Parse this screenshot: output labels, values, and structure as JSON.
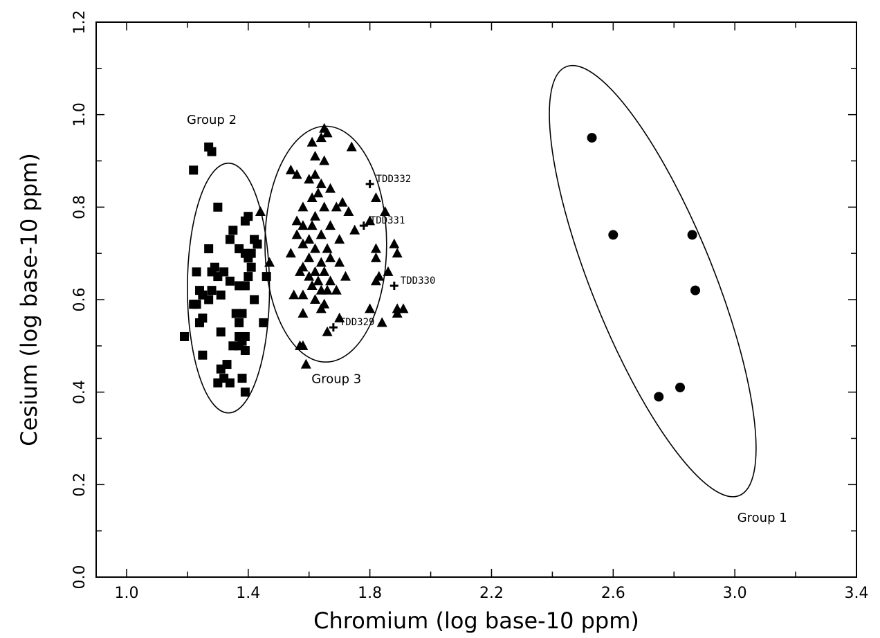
{
  "chart_data": {
    "type": "scatter",
    "title": "",
    "xlabel": "Chromium (log base-10 ppm)",
    "ylabel": "Cesium (log base-10 ppm)",
    "xlim": [
      0.9,
      3.4
    ],
    "ylim": [
      0.0,
      1.2
    ],
    "x_ticks": [
      "1.0",
      "1.4",
      "1.8",
      "2.2",
      "2.6",
      "3.0",
      "3.4"
    ],
    "y_ticks": [
      "0.0",
      "0.2",
      "0.4",
      "0.6",
      "0.8",
      "1.0",
      "1.2"
    ],
    "grid": false,
    "series": [
      {
        "marker": "square",
        "points": [
          [
            1.27,
            0.93
          ],
          [
            1.28,
            0.92
          ],
          [
            1.22,
            0.88
          ],
          [
            1.3,
            0.8
          ],
          [
            1.4,
            0.78
          ],
          [
            1.39,
            0.77
          ],
          [
            1.35,
            0.75
          ],
          [
            1.34,
            0.73
          ],
          [
            1.37,
            0.71
          ],
          [
            1.39,
            0.7
          ],
          [
            1.41,
            0.7
          ],
          [
            1.4,
            0.69
          ],
          [
            1.42,
            0.73
          ],
          [
            1.43,
            0.72
          ],
          [
            1.27,
            0.71
          ],
          [
            1.41,
            0.67
          ],
          [
            1.29,
            0.67
          ],
          [
            1.28,
            0.66
          ],
          [
            1.23,
            0.66
          ],
          [
            1.32,
            0.66
          ],
          [
            1.3,
            0.65
          ],
          [
            1.4,
            0.65
          ],
          [
            1.46,
            0.65
          ],
          [
            1.34,
            0.64
          ],
          [
            1.39,
            0.63
          ],
          [
            1.37,
            0.63
          ],
          [
            1.24,
            0.62
          ],
          [
            1.28,
            0.62
          ],
          [
            1.25,
            0.61
          ],
          [
            1.27,
            0.6
          ],
          [
            1.31,
            0.61
          ],
          [
            1.42,
            0.6
          ],
          [
            1.22,
            0.59
          ],
          [
            1.23,
            0.59
          ],
          [
            1.36,
            0.57
          ],
          [
            1.38,
            0.57
          ],
          [
            1.25,
            0.56
          ],
          [
            1.37,
            0.55
          ],
          [
            1.24,
            0.55
          ],
          [
            1.45,
            0.55
          ],
          [
            1.31,
            0.53
          ],
          [
            1.37,
            0.52
          ],
          [
            1.39,
            0.52
          ],
          [
            1.19,
            0.52
          ],
          [
            1.38,
            0.51
          ],
          [
            1.35,
            0.5
          ],
          [
            1.37,
            0.5
          ],
          [
            1.39,
            0.49
          ],
          [
            1.25,
            0.48
          ],
          [
            1.33,
            0.46
          ],
          [
            1.31,
            0.45
          ],
          [
            1.32,
            0.43
          ],
          [
            1.34,
            0.42
          ],
          [
            1.3,
            0.42
          ],
          [
            1.38,
            0.43
          ],
          [
            1.39,
            0.4
          ]
        ]
      },
      {
        "marker": "triangle",
        "points": [
          [
            1.65,
            0.97
          ],
          [
            1.66,
            0.96
          ],
          [
            1.64,
            0.95
          ],
          [
            1.61,
            0.94
          ],
          [
            1.74,
            0.93
          ],
          [
            1.65,
            0.9
          ],
          [
            1.62,
            0.91
          ],
          [
            1.54,
            0.88
          ],
          [
            1.56,
            0.87
          ],
          [
            1.62,
            0.87
          ],
          [
            1.64,
            0.85
          ],
          [
            1.6,
            0.86
          ],
          [
            1.67,
            0.84
          ],
          [
            1.63,
            0.83
          ],
          [
            1.71,
            0.81
          ],
          [
            1.82,
            0.82
          ],
          [
            1.61,
            0.82
          ],
          [
            1.58,
            0.8
          ],
          [
            1.65,
            0.8
          ],
          [
            1.69,
            0.8
          ],
          [
            1.44,
            0.79
          ],
          [
            1.73,
            0.79
          ],
          [
            1.85,
            0.79
          ],
          [
            1.62,
            0.78
          ],
          [
            1.56,
            0.77
          ],
          [
            1.8,
            0.77
          ],
          [
            1.58,
            0.76
          ],
          [
            1.61,
            0.76
          ],
          [
            1.67,
            0.76
          ],
          [
            1.75,
            0.75
          ],
          [
            1.56,
            0.74
          ],
          [
            1.64,
            0.74
          ],
          [
            1.6,
            0.73
          ],
          [
            1.7,
            0.73
          ],
          [
            1.58,
            0.72
          ],
          [
            1.88,
            0.72
          ],
          [
            1.66,
            0.71
          ],
          [
            1.62,
            0.71
          ],
          [
            1.82,
            0.71
          ],
          [
            1.89,
            0.7
          ],
          [
            1.54,
            0.7
          ],
          [
            1.6,
            0.69
          ],
          [
            1.67,
            0.69
          ],
          [
            1.82,
            0.69
          ],
          [
            1.64,
            0.68
          ],
          [
            1.47,
            0.68
          ],
          [
            1.7,
            0.68
          ],
          [
            1.58,
            0.67
          ],
          [
            1.62,
            0.66
          ],
          [
            1.65,
            0.66
          ],
          [
            1.57,
            0.66
          ],
          [
            1.86,
            0.66
          ],
          [
            1.6,
            0.65
          ],
          [
            1.72,
            0.65
          ],
          [
            1.83,
            0.65
          ],
          [
            1.63,
            0.64
          ],
          [
            1.67,
            0.64
          ],
          [
            1.82,
            0.64
          ],
          [
            1.61,
            0.63
          ],
          [
            1.64,
            0.62
          ],
          [
            1.69,
            0.62
          ],
          [
            1.66,
            0.62
          ],
          [
            1.58,
            0.61
          ],
          [
            1.55,
            0.61
          ],
          [
            1.62,
            0.6
          ],
          [
            1.65,
            0.59
          ],
          [
            1.64,
            0.58
          ],
          [
            1.8,
            0.58
          ],
          [
            1.89,
            0.58
          ],
          [
            1.91,
            0.58
          ],
          [
            1.58,
            0.57
          ],
          [
            1.89,
            0.57
          ],
          [
            1.7,
            0.56
          ],
          [
            1.84,
            0.55
          ],
          [
            1.66,
            0.53
          ],
          [
            1.58,
            0.5
          ],
          [
            1.57,
            0.5
          ],
          [
            1.59,
            0.46
          ]
        ]
      },
      {
        "marker": "circle",
        "points": [
          [
            2.53,
            0.95
          ],
          [
            2.6,
            0.74
          ],
          [
            2.86,
            0.74
          ],
          [
            2.87,
            0.62
          ],
          [
            2.82,
            0.41
          ],
          [
            2.75,
            0.39
          ]
        ]
      },
      {
        "marker": "cross",
        "points": [
          [
            1.8,
            0.85
          ],
          [
            1.78,
            0.76
          ],
          [
            1.88,
            0.63
          ],
          [
            1.68,
            0.54
          ]
        ]
      }
    ],
    "point_labels": [
      {
        "text": "TDD332",
        "x": 1.8,
        "y": 0.85
      },
      {
        "text": "TDD331",
        "x": 1.78,
        "y": 0.76
      },
      {
        "text": "TDD330",
        "x": 1.88,
        "y": 0.63
      },
      {
        "text": "TDD329",
        "x": 1.68,
        "y": 0.54
      }
    ],
    "ellipses": [
      {
        "label": "Group 2",
        "cx": 1.335,
        "cy": 0.625,
        "rx": 0.135,
        "ry": 0.27,
        "angle_deg": 0
      },
      {
        "label": "Group 3",
        "cx": 1.655,
        "cy": 0.72,
        "rx": 0.2,
        "ry": 0.255,
        "angle_deg": 0
      },
      {
        "label": "Group 1",
        "cx": 2.73,
        "cy": 0.64,
        "rx": 0.2,
        "ry": 0.5,
        "angle_deg": -22
      }
    ],
    "group_labels": [
      {
        "text": "Group 2",
        "x": 1.28,
        "y": 0.98
      },
      {
        "text": "Group 3",
        "x": 1.69,
        "y": 0.42
      },
      {
        "text": "Group 1",
        "x": 3.09,
        "y": 0.12
      }
    ]
  }
}
